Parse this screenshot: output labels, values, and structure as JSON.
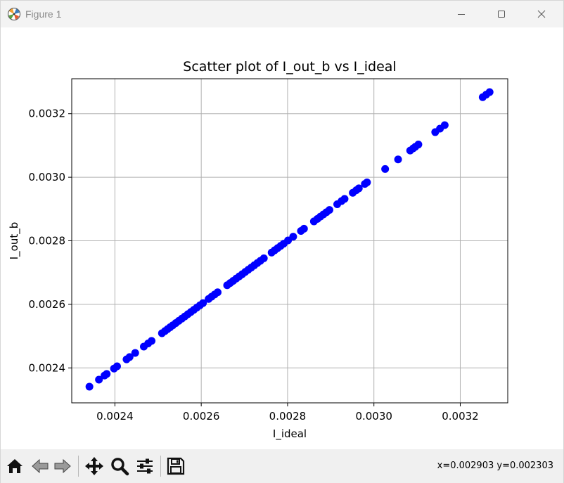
{
  "window": {
    "title": "Figure 1",
    "icons": {
      "app": "matplotlib-app-icon",
      "minimize": "minimize-icon",
      "maximize": "maximize-icon",
      "close": "close-icon"
    }
  },
  "toolbar": {
    "tools": [
      {
        "name": "home",
        "icon": "home-icon"
      },
      {
        "name": "back",
        "icon": "back-arrow-icon"
      },
      {
        "name": "forward",
        "icon": "forward-arrow-icon"
      },
      {
        "name": "pan",
        "icon": "pan-move-icon"
      },
      {
        "name": "zoom",
        "icon": "zoom-magnifier-icon"
      },
      {
        "name": "configure-subplots",
        "icon": "sliders-icon"
      },
      {
        "name": "save",
        "icon": "save-floppy-icon"
      }
    ],
    "coords_text": "x=0.002903 y=0.002303"
  },
  "chart_data": {
    "type": "scatter",
    "title": "Scatter plot of I_out_b vs I_ideal",
    "xlabel": "I_ideal",
    "ylabel": "I_out_b",
    "xlim": [
      0.0023,
      0.00331
    ],
    "ylim": [
      0.00229,
      0.00331
    ],
    "xticks": [
      0.0024,
      0.0026,
      0.0028,
      0.003,
      0.0032
    ],
    "yticks": [
      0.0024,
      0.0026,
      0.0028,
      0.003,
      0.0032
    ],
    "xtick_labels": [
      "0.0024",
      "0.0026",
      "0.0028",
      "0.0030",
      "0.0032"
    ],
    "ytick_labels": [
      "0.0024",
      "0.0026",
      "0.0028",
      "0.0030",
      "0.0032"
    ],
    "grid": true,
    "marker_color": "#0000ff",
    "x": [
      0.002341,
      0.002363,
      0.002376,
      0.002381,
      0.002398,
      0.002405,
      0.002427,
      0.002434,
      0.002447,
      0.002467,
      0.002477,
      0.002485,
      0.002509,
      0.002516,
      0.002522,
      0.002528,
      0.002534,
      0.002541,
      0.002548,
      0.002555,
      0.002562,
      0.002569,
      0.002576,
      0.002583,
      0.00259,
      0.002597,
      0.002604,
      0.002617,
      0.002624,
      0.002631,
      0.002638,
      0.00266,
      0.002667,
      0.002674,
      0.002681,
      0.002688,
      0.002695,
      0.002702,
      0.002709,
      0.002716,
      0.002723,
      0.00273,
      0.002737,
      0.002745,
      0.002763,
      0.00277,
      0.002777,
      0.002784,
      0.002791,
      0.002801,
      0.002813,
      0.002831,
      0.002838,
      0.002861,
      0.002869,
      0.002876,
      0.002883,
      0.00289,
      0.002897,
      0.002915,
      0.002925,
      0.002932,
      0.002951,
      0.002959,
      0.002965,
      0.002979,
      0.002984,
      0.003026,
      0.003056,
      0.003084,
      0.003091,
      0.003096,
      0.003103,
      0.003142,
      0.003153,
      0.003164,
      0.003252,
      0.00326,
      0.003268
    ],
    "y": [
      0.002341,
      0.002363,
      0.002376,
      0.002381,
      0.002398,
      0.002405,
      0.002427,
      0.002434,
      0.002447,
      0.002467,
      0.002477,
      0.002485,
      0.002509,
      0.002516,
      0.002522,
      0.002528,
      0.002534,
      0.002541,
      0.002548,
      0.002555,
      0.002562,
      0.002569,
      0.002576,
      0.002583,
      0.00259,
      0.002597,
      0.002604,
      0.002617,
      0.002624,
      0.002631,
      0.002638,
      0.00266,
      0.002667,
      0.002674,
      0.002681,
      0.002688,
      0.002695,
      0.002702,
      0.002709,
      0.002716,
      0.002723,
      0.00273,
      0.002737,
      0.002745,
      0.002763,
      0.00277,
      0.002777,
      0.002784,
      0.002791,
      0.002801,
      0.002813,
      0.002831,
      0.002838,
      0.002861,
      0.002869,
      0.002876,
      0.002883,
      0.00289,
      0.002897,
      0.002915,
      0.002925,
      0.002932,
      0.002951,
      0.002959,
      0.002965,
      0.002979,
      0.002984,
      0.003026,
      0.003056,
      0.003084,
      0.003091,
      0.003096,
      0.003103,
      0.003142,
      0.003153,
      0.003164,
      0.003252,
      0.00326,
      0.003268
    ]
  }
}
